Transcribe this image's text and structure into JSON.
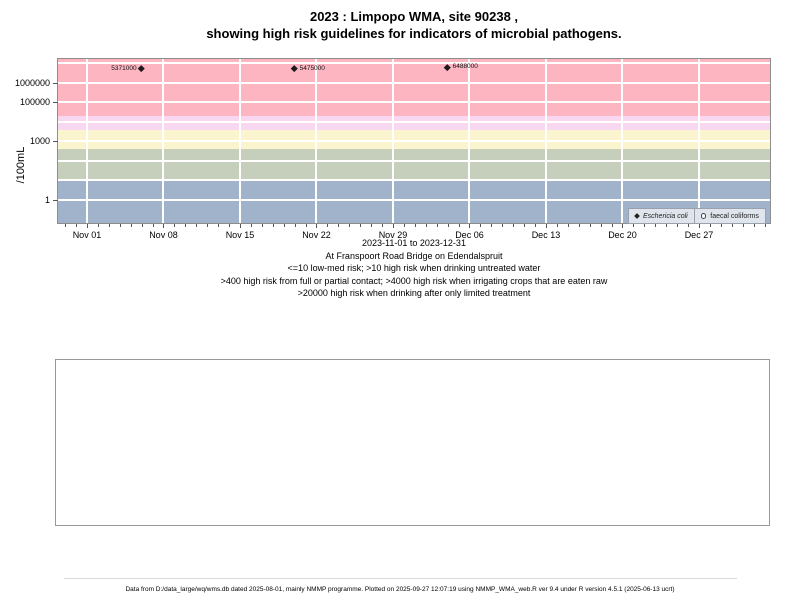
{
  "title": {
    "line1": "2023 : Limpopo WMA, site 90238 ,",
    "line2": "showing high risk guidelines for indicators of microbial pathogens."
  },
  "chart_data": {
    "type": "scatter",
    "title": "2023 : Limpopo WMA, site 90238 , showing high risk guidelines for indicators of microbial pathogens.",
    "ylabel": "/100mL",
    "y_scale": "log10",
    "ylim": [
      0.066,
      17000000
    ],
    "ylim_log10": [
      -1.18,
      7.23
    ],
    "xlim_days": [
      -2.65,
      62.5
    ],
    "x_epoch": "2023-11-01",
    "grid": "white major gridlines over colored risk bands",
    "legend_position": "bottom-right",
    "x_ticks": [
      {
        "day": 0,
        "label": "Nov 01"
      },
      {
        "day": 7,
        "label": "Nov 08"
      },
      {
        "day": 14,
        "label": "Nov 15"
      },
      {
        "day": 21,
        "label": "Nov 22"
      },
      {
        "day": 28,
        "label": "Nov 29"
      },
      {
        "day": 35,
        "label": "Dec 06"
      },
      {
        "day": 42,
        "label": "Dec 13"
      },
      {
        "day": 49,
        "label": "Dec 20"
      },
      {
        "day": 56,
        "label": "Dec 27"
      }
    ],
    "y_ticks": [
      {
        "value": 1000000,
        "label": "1000000"
      },
      {
        "value": 100000,
        "label": "100000"
      },
      {
        "value": 1000,
        "label": "1000"
      },
      {
        "value": 1,
        "label": "1"
      }
    ],
    "grid_decades": [
      0,
      1,
      2,
      3,
      4,
      5,
      6,
      7
    ],
    "risk_bands": [
      {
        "range": ">20000",
        "meaning": "high risk when drinking after only limited treatment",
        "min": 20000,
        "max": 17000000,
        "color": "#FCB5C1"
      },
      {
        "range": "4000-20000",
        "meaning": "high risk when irrigating crops that are eaten raw",
        "min": 4000,
        "max": 20000,
        "color": "#F8D8F0"
      },
      {
        "range": "400-4000",
        "meaning": "high risk from full or partial contact",
        "min": 400,
        "max": 4000,
        "color": "#FAF5CE"
      },
      {
        "range": "10-400",
        "meaning": "high risk when drinking untreated water",
        "min": 10,
        "max": 400,
        "color": "#C5CFBB"
      },
      {
        "range": "<=10",
        "meaning": "low-med risk",
        "min": 0.066,
        "max": 10,
        "color": "#A1B3CB"
      }
    ],
    "series": [
      {
        "name": "Eschericia coli",
        "marker": "filled-diamond",
        "color": "#1C1C1C",
        "points": [
          {
            "date": "2023-11-06",
            "day": 5,
            "value": 5371000,
            "label": "5371000",
            "label_side": "left"
          },
          {
            "date": "2023-11-20",
            "day": 19,
            "value": 5475000,
            "label": "5475000",
            "label_side": "right"
          },
          {
            "date": "2023-12-04",
            "day": 33,
            "value": 6488000,
            "label": "6488000",
            "label_side": "right"
          }
        ]
      },
      {
        "name": "faecal coliforms",
        "marker": "open-circle",
        "color": "#1C1C1C",
        "points": []
      }
    ],
    "legend": {
      "entries": [
        {
          "marker": "filled-diamond",
          "label": "Eschericia coli",
          "italic": true
        },
        {
          "marker": "open-circle",
          "label": "faecal coliforms",
          "italic": false
        }
      ]
    }
  },
  "captions": {
    "date_range": "2023-11-01 to 2023-12-31",
    "location": "At Franspoort Road Bridge on Edendalspruit",
    "guideline1": "<=10 low-med risk; >10 high risk when drinking untreated water",
    "guideline2": ">400 high risk from full or partial contact; >4000 high risk when irrigating crops that are eaten raw",
    "guideline3": ">20000 high risk when drinking after only limited treatment"
  },
  "footer": {
    "text": "Data from D:/data_large/wq/wms.db dated 2025-08-01, mainly NMMP programme. Plotted on 2025-09-27 12:07:19 using NMMP_WMA_web.R ver 9.4 under R version 4.5.1 (2025-06-13 ucrt)"
  }
}
